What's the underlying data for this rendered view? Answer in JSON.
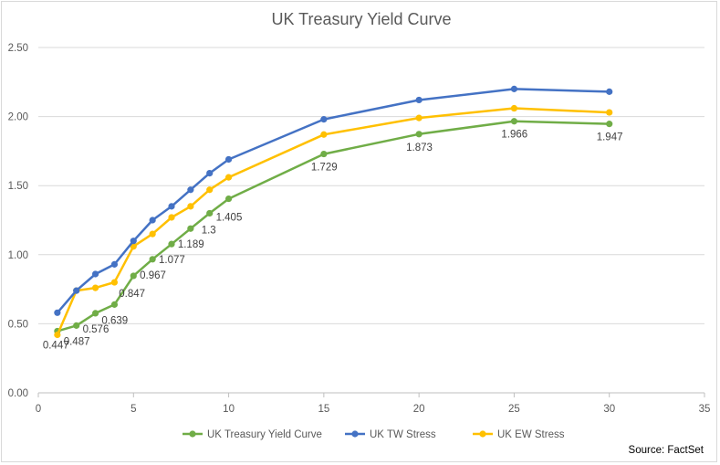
{
  "chart_data": {
    "type": "line",
    "title": "UK Treasury Yield Curve",
    "xlabel": "",
    "ylabel": "",
    "xlim": [
      0,
      35
    ],
    "ylim": [
      0,
      2.5
    ],
    "x_ticks": [
      "0",
      "5",
      "10",
      "15",
      "20",
      "25",
      "30",
      "35"
    ],
    "y_ticks": [
      "0.00",
      "0.50",
      "1.00",
      "1.50",
      "2.00",
      "2.50"
    ],
    "grid": "horizontal",
    "legend_position": "bottom",
    "source": "Source: FactSet",
    "series": [
      {
        "name": "UK Treasury Yield Curve",
        "color": "#70ad47",
        "x": [
          1,
          2,
          3,
          4,
          5,
          6,
          7,
          8,
          9,
          10,
          15,
          20,
          25,
          30
        ],
        "y": [
          0.447,
          0.487,
          0.576,
          0.639,
          0.847,
          0.967,
          1.077,
          1.189,
          1.3,
          1.405,
          1.729,
          1.873,
          1.966,
          1.947
        ],
        "labels": [
          "0.447",
          "0.487",
          "0.576",
          "0.639",
          "0.847",
          "0.967",
          "1.077",
          "1.189",
          "1.3",
          "1.405",
          "1.729",
          "1.873",
          "1.966",
          "1.947"
        ]
      },
      {
        "name": "UK TW Stress",
        "color": "#4472c4",
        "x": [
          1,
          2,
          3,
          4,
          5,
          6,
          7,
          8,
          9,
          10,
          15,
          20,
          25,
          30
        ],
        "y": [
          0.58,
          0.74,
          0.86,
          0.93,
          1.1,
          1.25,
          1.35,
          1.47,
          1.59,
          1.69,
          1.98,
          2.12,
          2.2,
          2.18
        ]
      },
      {
        "name": "UK EW Stress",
        "color": "#ffc000",
        "x": [
          1,
          2,
          3,
          4,
          5,
          6,
          7,
          8,
          9,
          10,
          15,
          20,
          25,
          30
        ],
        "y": [
          0.42,
          0.74,
          0.76,
          0.8,
          1.06,
          1.15,
          1.27,
          1.35,
          1.47,
          1.56,
          1.87,
          1.99,
          2.06,
          2.03
        ]
      }
    ]
  }
}
